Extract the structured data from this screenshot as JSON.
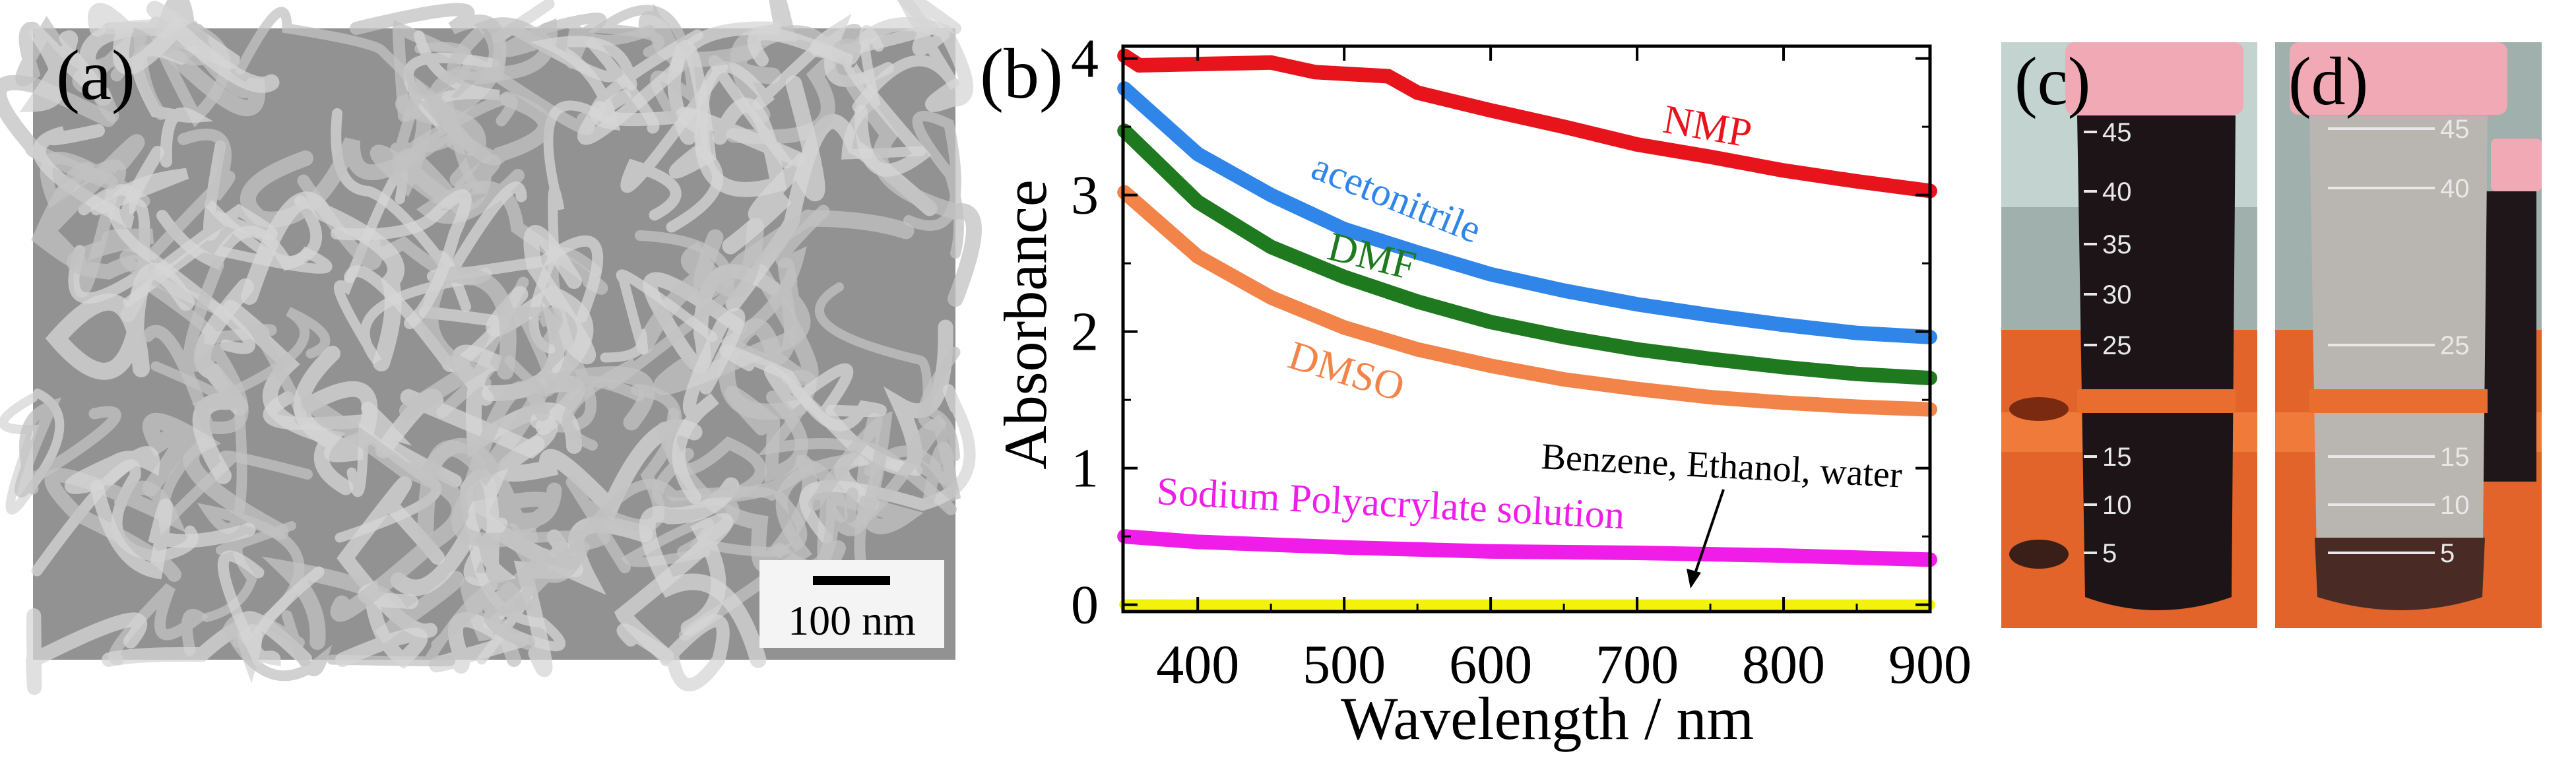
{
  "panels": {
    "a": {
      "label": "(a)",
      "scale_bar": "100 nm"
    },
    "b": {
      "label": "(b)"
    },
    "c": {
      "label": "(c)",
      "graduations": [
        "45",
        "40",
        "35",
        "30",
        "25",
        "15",
        "10",
        "5"
      ]
    },
    "d": {
      "label": "(d)",
      "graduations": [
        "45",
        "40",
        "25",
        "15",
        "10",
        "5"
      ]
    }
  },
  "chart_data": {
    "type": "line",
    "title": "",
    "xlabel": "Wavelength / nm",
    "ylabel": "Absorbance",
    "xlim": [
      349,
      900
    ],
    "ylim": [
      -0.05,
      4.09
    ],
    "xticks": [
      400,
      500,
      600,
      700,
      800,
      900
    ],
    "yticks": [
      0,
      1,
      2,
      3,
      4
    ],
    "grid": false,
    "legend": "none (inline labels)",
    "series": [
      {
        "name": "NMP",
        "color": "#e8141c",
        "x": [
          350,
          360,
          450,
          480,
          530,
          550,
          600,
          650,
          700,
          750,
          800,
          850,
          900
        ],
        "y": [
          4.02,
          3.95,
          3.97,
          3.9,
          3.87,
          3.75,
          3.62,
          3.5,
          3.37,
          3.28,
          3.18,
          3.1,
          3.03
        ]
      },
      {
        "name": "acetonitrile",
        "color": "#2f86e8",
        "x": [
          350,
          400,
          450,
          500,
          550,
          600,
          650,
          700,
          750,
          800,
          850,
          900
        ],
        "y": [
          3.78,
          3.3,
          3.0,
          2.75,
          2.58,
          2.42,
          2.3,
          2.2,
          2.12,
          2.05,
          1.99,
          1.96
        ]
      },
      {
        "name": "DMF",
        "color": "#1f7a1f",
        "x": [
          350,
          400,
          450,
          500,
          550,
          600,
          650,
          700,
          750,
          800,
          850,
          900
        ],
        "y": [
          3.47,
          2.95,
          2.62,
          2.4,
          2.22,
          2.07,
          1.96,
          1.87,
          1.8,
          1.74,
          1.69,
          1.66
        ]
      },
      {
        "name": "DMSO",
        "color": "#f2844a",
        "x": [
          350,
          400,
          450,
          500,
          550,
          600,
          650,
          700,
          750,
          800,
          850,
          900
        ],
        "y": [
          3.02,
          2.55,
          2.25,
          2.03,
          1.87,
          1.75,
          1.65,
          1.58,
          1.52,
          1.48,
          1.45,
          1.43
        ]
      },
      {
        "name": "Sodium Polyacrylate solution",
        "color": "#f01ce8",
        "x": [
          350,
          400,
          500,
          600,
          700,
          800,
          900
        ],
        "y": [
          0.5,
          0.46,
          0.42,
          0.39,
          0.38,
          0.36,
          0.33
        ]
      },
      {
        "name": "Benzene, Ethanol, water",
        "color": "#f2f20a",
        "x": [
          350,
          900
        ],
        "y": [
          0.0,
          0.0
        ]
      }
    ]
  }
}
